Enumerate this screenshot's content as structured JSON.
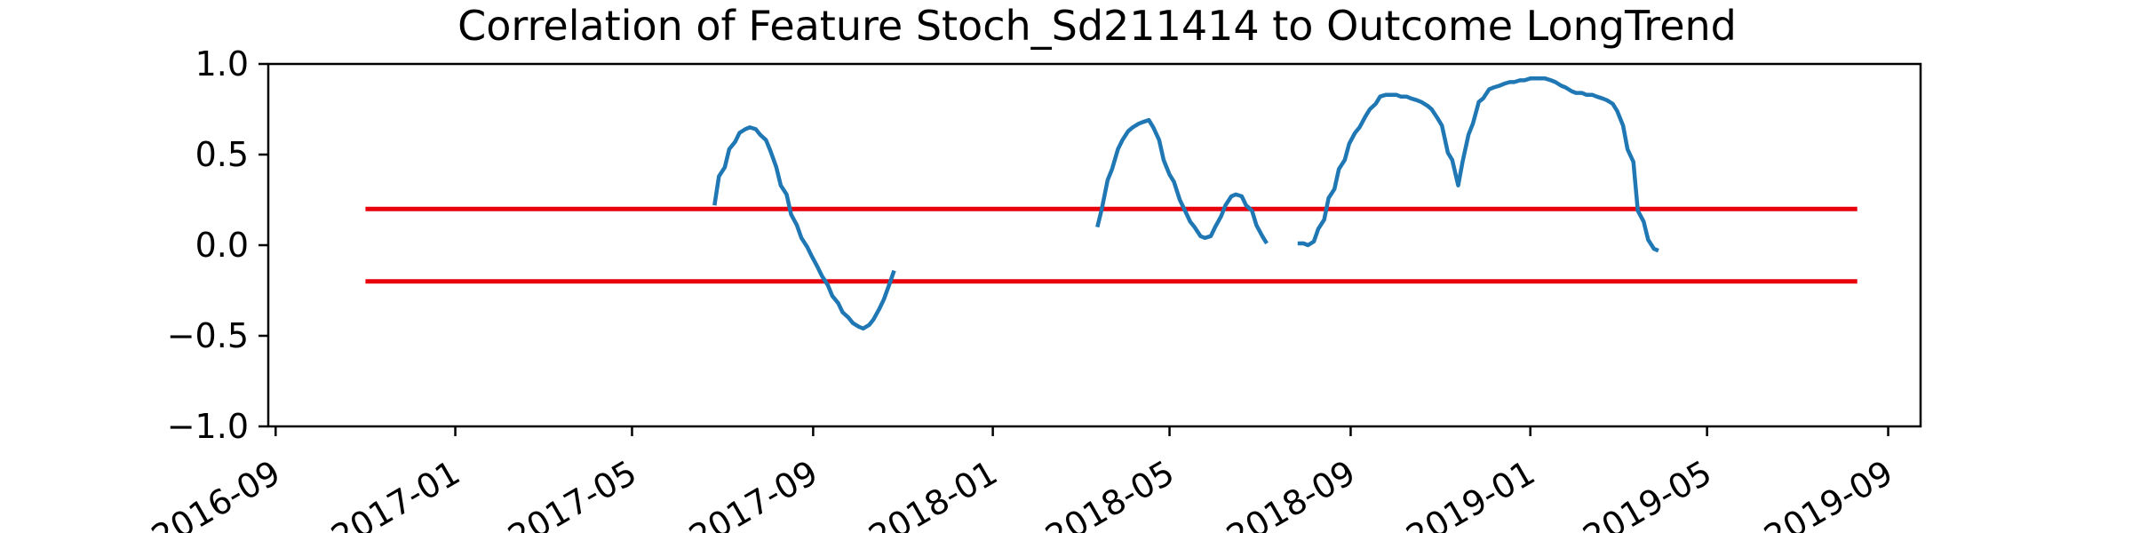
{
  "chart_data": {
    "type": "line",
    "title": "Correlation of Feature Stoch_Sd211414 to Outcome LongTrend",
    "xlabel": "",
    "ylabel": "",
    "x_axis_type": "date",
    "xlim": [
      "2016-08-27",
      "2019-09-23"
    ],
    "ylim": [
      -1.0,
      1.0
    ],
    "x_ticks": [
      "2016-09",
      "2017-01",
      "2017-05",
      "2017-09",
      "2018-01",
      "2018-05",
      "2018-09",
      "2019-01",
      "2019-05",
      "2019-09"
    ],
    "y_ticks": [
      "1.0",
      "0.5",
      "0.0",
      "−0.5",
      "−1.0"
    ],
    "y_tick_values": [
      1.0,
      0.5,
      0.0,
      -0.5,
      -1.0
    ],
    "grid": false,
    "legend": "none",
    "colors": {
      "series": "#1f77b4",
      "threshold": "#e8000b"
    },
    "threshold_lines": [
      {
        "y": 0.2,
        "x_start": "2016-11-01",
        "x_end": "2019-08-11"
      },
      {
        "y": -0.2,
        "x_start": "2016-11-01",
        "x_end": "2019-08-11"
      }
    ],
    "series": [
      {
        "segments": [
          [
            [
              "2017-06-26",
              0.22
            ],
            [
              "2017-06-29",
              0.38
            ],
            [
              "2017-07-03",
              0.43
            ],
            [
              "2017-07-06",
              0.53
            ],
            [
              "2017-07-10",
              0.57
            ],
            [
              "2017-07-13",
              0.62
            ],
            [
              "2017-07-17",
              0.64
            ],
            [
              "2017-07-20",
              0.65
            ],
            [
              "2017-07-24",
              0.64
            ],
            [
              "2017-07-27",
              0.61
            ],
            [
              "2017-07-31",
              0.58
            ],
            [
              "2017-08-03",
              0.52
            ],
            [
              "2017-08-07",
              0.43
            ],
            [
              "2017-08-10",
              0.33
            ],
            [
              "2017-08-14",
              0.28
            ],
            [
              "2017-08-17",
              0.17
            ],
            [
              "2017-08-21",
              0.11
            ],
            [
              "2017-08-24",
              0.04
            ],
            [
              "2017-08-28",
              -0.01
            ],
            [
              "2017-08-31",
              -0.06
            ],
            [
              "2017-09-04",
              -0.12
            ],
            [
              "2017-09-07",
              -0.17
            ],
            [
              "2017-09-11",
              -0.22
            ],
            [
              "2017-09-14",
              -0.28
            ],
            [
              "2017-09-18",
              -0.32
            ],
            [
              "2017-09-21",
              -0.37
            ],
            [
              "2017-09-25",
              -0.4
            ],
            [
              "2017-09-28",
              -0.43
            ],
            [
              "2017-10-02",
              -0.45
            ],
            [
              "2017-10-05",
              -0.46
            ],
            [
              "2017-10-09",
              -0.44
            ],
            [
              "2017-10-12",
              -0.41
            ],
            [
              "2017-10-16",
              -0.35
            ],
            [
              "2017-10-19",
              -0.3
            ],
            [
              "2017-10-23",
              -0.21
            ],
            [
              "2017-10-26",
              -0.14
            ]
          ],
          [
            [
              "2018-03-13",
              0.1
            ],
            [
              "2018-03-16",
              0.2
            ],
            [
              "2018-03-20",
              0.36
            ],
            [
              "2018-03-23",
              0.42
            ],
            [
              "2018-03-27",
              0.53
            ],
            [
              "2018-03-30",
              0.58
            ],
            [
              "2018-04-03",
              0.63
            ],
            [
              "2018-04-06",
              0.65
            ],
            [
              "2018-04-10",
              0.67
            ],
            [
              "2018-04-13",
              0.68
            ],
            [
              "2018-04-17",
              0.69
            ],
            [
              "2018-04-20",
              0.65
            ],
            [
              "2018-04-24",
              0.58
            ],
            [
              "2018-04-27",
              0.47
            ],
            [
              "2018-05-01",
              0.39
            ],
            [
              "2018-05-04",
              0.35
            ],
            [
              "2018-05-08",
              0.25
            ],
            [
              "2018-05-11",
              0.2
            ],
            [
              "2018-05-15",
              0.13
            ],
            [
              "2018-05-18",
              0.1
            ],
            [
              "2018-05-22",
              0.05
            ],
            [
              "2018-05-25",
              0.04
            ],
            [
              "2018-05-29",
              0.05
            ],
            [
              "2018-06-01",
              0.1
            ],
            [
              "2018-06-05",
              0.16
            ],
            [
              "2018-06-08",
              0.22
            ],
            [
              "2018-06-12",
              0.27
            ],
            [
              "2018-06-15",
              0.28
            ],
            [
              "2018-06-19",
              0.27
            ],
            [
              "2018-06-22",
              0.22
            ],
            [
              "2018-06-26",
              0.19
            ],
            [
              "2018-06-29",
              0.11
            ],
            [
              "2018-07-03",
              0.05
            ],
            [
              "2018-07-06",
              0.01
            ]
          ],
          [
            [
              "2018-07-27",
              0.01
            ],
            [
              "2018-07-31",
              0.01
            ],
            [
              "2018-08-03",
              0.0
            ],
            [
              "2018-08-07",
              0.02
            ],
            [
              "2018-08-10",
              0.09
            ],
            [
              "2018-08-14",
              0.14
            ],
            [
              "2018-08-17",
              0.26
            ],
            [
              "2018-08-21",
              0.31
            ],
            [
              "2018-08-24",
              0.42
            ],
            [
              "2018-08-28",
              0.47
            ],
            [
              "2018-08-31",
              0.56
            ],
            [
              "2018-09-04",
              0.62
            ],
            [
              "2018-09-07",
              0.65
            ],
            [
              "2018-09-11",
              0.71
            ],
            [
              "2018-09-14",
              0.75
            ],
            [
              "2018-09-18",
              0.78
            ],
            [
              "2018-09-21",
              0.82
            ],
            [
              "2018-09-25",
              0.83
            ],
            [
              "2018-09-28",
              0.83
            ],
            [
              "2018-10-02",
              0.83
            ],
            [
              "2018-10-05",
              0.82
            ],
            [
              "2018-10-09",
              0.82
            ],
            [
              "2018-10-12",
              0.81
            ],
            [
              "2018-10-16",
              0.8
            ],
            [
              "2018-10-19",
              0.79
            ],
            [
              "2018-10-23",
              0.77
            ],
            [
              "2018-10-26",
              0.75
            ],
            [
              "2018-10-30",
              0.7
            ],
            [
              "2018-11-02",
              0.66
            ],
            [
              "2018-11-06",
              0.51
            ],
            [
              "2018-11-09",
              0.47
            ],
            [
              "2018-11-13",
              0.33
            ],
            [
              "2018-11-16",
              0.46
            ],
            [
              "2018-11-20",
              0.61
            ],
            [
              "2018-11-23",
              0.67
            ],
            [
              "2018-11-27",
              0.79
            ],
            [
              "2018-11-30",
              0.81
            ],
            [
              "2018-12-04",
              0.86
            ],
            [
              "2018-12-07",
              0.87
            ],
            [
              "2018-12-11",
              0.88
            ],
            [
              "2018-12-14",
              0.89
            ],
            [
              "2018-12-18",
              0.9
            ],
            [
              "2018-12-21",
              0.9
            ],
            [
              "2018-12-25",
              0.91
            ],
            [
              "2018-12-28",
              0.91
            ],
            [
              "2019-01-01",
              0.92
            ],
            [
              "2019-01-04",
              0.92
            ],
            [
              "2019-01-08",
              0.92
            ],
            [
              "2019-01-11",
              0.92
            ],
            [
              "2019-01-15",
              0.91
            ],
            [
              "2019-01-18",
              0.9
            ],
            [
              "2019-01-22",
              0.88
            ],
            [
              "2019-01-25",
              0.87
            ],
            [
              "2019-01-29",
              0.85
            ],
            [
              "2019-02-01",
              0.84
            ],
            [
              "2019-02-05",
              0.84
            ],
            [
              "2019-02-08",
              0.83
            ],
            [
              "2019-02-12",
              0.83
            ],
            [
              "2019-02-15",
              0.82
            ],
            [
              "2019-02-19",
              0.81
            ],
            [
              "2019-02-22",
              0.8
            ],
            [
              "2019-02-26",
              0.78
            ],
            [
              "2019-03-01",
              0.74
            ],
            [
              "2019-03-05",
              0.66
            ],
            [
              "2019-03-08",
              0.53
            ],
            [
              "2019-03-12",
              0.46
            ],
            [
              "2019-03-15",
              0.19
            ],
            [
              "2019-03-19",
              0.13
            ],
            [
              "2019-03-22",
              0.03
            ],
            [
              "2019-03-26",
              -0.02
            ],
            [
              "2019-03-29",
              -0.03
            ]
          ]
        ]
      }
    ]
  }
}
